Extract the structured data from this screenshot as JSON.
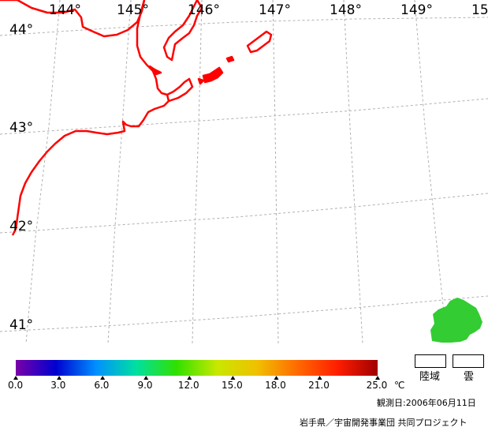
{
  "map": {
    "lon_labels": [
      "144°",
      "145°",
      "146°",
      "147°",
      "148°",
      "149°",
      "15"
    ],
    "lat_labels": [
      "44°",
      "43°",
      "42°",
      "41°"
    ],
    "coastline_color": "#ff0000",
    "grid_color": "#b0b0b0",
    "sst_patch_color": "#33cc33"
  },
  "scale": {
    "ticks": [
      "0.0",
      "3.0",
      "6.0",
      "9.0",
      "12.0",
      "15.0",
      "18.0",
      "21.0",
      "25.0"
    ],
    "unit": "℃",
    "min": 0.0,
    "max": 25.0,
    "colors": [
      "#7a00a8",
      "#0000d0",
      "#0090ff",
      "#00e0a0",
      "#30e000",
      "#c8e800",
      "#f0c000",
      "#ff6a00",
      "#ff1e00",
      "#a00000"
    ]
  },
  "legend": {
    "land_label": "陸域",
    "cloud_label": "雲"
  },
  "footer": {
    "observation_date": "観測日:2006年06月11日",
    "credit": "岩手県／宇宙開発事業団 共同プロジェクト"
  }
}
